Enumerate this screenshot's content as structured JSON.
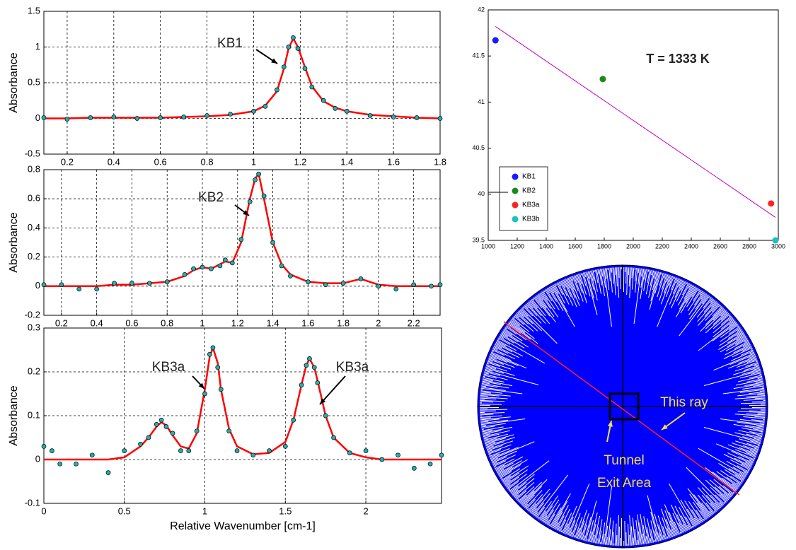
{
  "chart_data": [
    {
      "type": "line",
      "y_label": "Absorbance",
      "annotations": [
        "KB1"
      ],
      "xlim": [
        0.1,
        1.8
      ],
      "ylim": [
        -0.5,
        1.5
      ],
      "xticks": [
        0.2,
        0.4,
        0.6,
        0.8,
        1,
        1.2,
        1.4,
        1.6,
        1.8
      ],
      "yticks": [
        -0.5,
        0,
        0.5,
        1,
        1.5
      ],
      "grid": true,
      "x": [
        0.1,
        0.2,
        0.3,
        0.4,
        0.5,
        0.6,
        0.7,
        0.8,
        0.9,
        1.0,
        1.05,
        1.1,
        1.13,
        1.15,
        1.17,
        1.19,
        1.22,
        1.25,
        1.3,
        1.35,
        1.4,
        1.5,
        1.6,
        1.7,
        1.8
      ],
      "series": [
        {
          "color": "#ff0000",
          "style": "line",
          "values": [
            0,
            0,
            0.01,
            0.01,
            0.01,
            0.01,
            0.02,
            0.03,
            0.05,
            0.1,
            0.18,
            0.38,
            0.7,
            0.98,
            1.12,
            1.0,
            0.72,
            0.45,
            0.24,
            0.15,
            0.1,
            0.05,
            0.03,
            0.01,
            0
          ]
        },
        {
          "color": "#20b0b0",
          "style": "markers",
          "values": [
            0.01,
            -0.01,
            0.01,
            0.02,
            0,
            0.01,
            0.02,
            0.04,
            0.06,
            0.1,
            0.17,
            0.4,
            0.72,
            1.0,
            1.13,
            0.98,
            0.7,
            0.44,
            0.25,
            0.14,
            0.1,
            0.04,
            0.02,
            0.01,
            0
          ]
        }
      ]
    },
    {
      "type": "line",
      "y_label": "Absorbance",
      "annotations": [
        "KB2"
      ],
      "xlim": [
        0.1,
        2.35
      ],
      "ylim": [
        -0.2,
        0.8
      ],
      "xticks": [
        0.2,
        0.4,
        0.6,
        0.8,
        1,
        1.2,
        1.4,
        1.6,
        1.8,
        2,
        2.2
      ],
      "yticks": [
        -0.2,
        0,
        0.2,
        0.4,
        0.6,
        0.8
      ],
      "grid": true,
      "x": [
        0.1,
        0.2,
        0.3,
        0.4,
        0.5,
        0.6,
        0.7,
        0.8,
        0.9,
        0.95,
        1.0,
        1.05,
        1.1,
        1.13,
        1.17,
        1.22,
        1.27,
        1.3,
        1.32,
        1.35,
        1.4,
        1.45,
        1.5,
        1.6,
        1.7,
        1.8,
        1.9,
        2.0,
        2.1,
        2.2,
        2.3,
        2.35
      ],
      "series": [
        {
          "color": "#ff0000",
          "style": "line",
          "values": [
            0,
            0,
            0,
            0,
            0.01,
            0.01,
            0.02,
            0.03,
            0.07,
            0.11,
            0.13,
            0.12,
            0.15,
            0.17,
            0.16,
            0.3,
            0.6,
            0.74,
            0.77,
            0.6,
            0.3,
            0.15,
            0.08,
            0.03,
            0.02,
            0.02,
            0.05,
            0.01,
            0,
            0,
            0,
            0
          ]
        },
        {
          "color": "#20b0b0",
          "style": "markers",
          "values": [
            0.01,
            0.01,
            -0.02,
            -0.02,
            0.02,
            0.02,
            0.02,
            0.03,
            0.08,
            0.12,
            0.13,
            0.12,
            0.14,
            0.18,
            0.16,
            0.32,
            0.58,
            0.73,
            0.77,
            0.62,
            0.3,
            0.14,
            0.07,
            0.03,
            0.01,
            0.02,
            0.05,
            0,
            -0.02,
            0.01,
            0,
            0.01
          ]
        }
      ]
    },
    {
      "type": "line",
      "y_label": "Absorbance",
      "x_label": "Relative Wavenumber  [cm-1]",
      "annotations": [
        "KB3a",
        "KB3a"
      ],
      "xlim": [
        0,
        2.47
      ],
      "ylim": [
        -0.1,
        0.3
      ],
      "xticks": [
        0,
        0.5,
        1,
        1.5,
        2
      ],
      "yticks": [
        -0.1,
        0,
        0.1,
        0.2,
        0.3
      ],
      "grid": true,
      "x": [
        0,
        0.05,
        0.1,
        0.2,
        0.3,
        0.4,
        0.5,
        0.6,
        0.65,
        0.7,
        0.73,
        0.76,
        0.8,
        0.85,
        0.9,
        0.95,
        1.0,
        1.03,
        1.05,
        1.08,
        1.1,
        1.15,
        1.2,
        1.3,
        1.4,
        1.5,
        1.55,
        1.6,
        1.63,
        1.65,
        1.68,
        1.7,
        1.75,
        1.8,
        1.9,
        2.0,
        2.1,
        2.2,
        2.3,
        2.4,
        2.47
      ],
      "series": [
        {
          "color": "#ff0000",
          "style": "line",
          "values": [
            0,
            0,
            0,
            0,
            0,
            0,
            0.005,
            0.03,
            0.05,
            0.075,
            0.085,
            0.078,
            0.055,
            0.03,
            0.025,
            0.06,
            0.16,
            0.235,
            0.255,
            0.22,
            0.16,
            0.07,
            0.03,
            0.012,
            0.015,
            0.04,
            0.09,
            0.17,
            0.215,
            0.23,
            0.21,
            0.18,
            0.1,
            0.05,
            0.015,
            0.005,
            0,
            0,
            0,
            0,
            0
          ]
        },
        {
          "color": "#20b0b0",
          "style": "markers",
          "values": [
            0.03,
            0.02,
            -0.01,
            -0.01,
            0.01,
            -0.03,
            0.02,
            0.035,
            0.05,
            0.08,
            0.09,
            0.075,
            0.06,
            0.02,
            0.02,
            0.065,
            0.15,
            0.24,
            0.255,
            0.21,
            0.16,
            0.065,
            0.02,
            0.01,
            0.02,
            0.03,
            0.09,
            0.17,
            0.215,
            0.23,
            0.21,
            0.175,
            0.1,
            0.05,
            0.015,
            0.02,
            0,
            0.01,
            -0.02,
            -0.01,
            0.01
          ]
        }
      ]
    },
    {
      "type": "scatter",
      "annotations": [
        "T = 1333 K"
      ],
      "legend": "lower-left",
      "xlim": [
        1000,
        3000
      ],
      "ylim": [
        39.5,
        42
      ],
      "xticks": [
        1000,
        1200,
        1400,
        1600,
        1800,
        2000,
        2200,
        2400,
        2600,
        2800,
        3000
      ],
      "yticks": [
        39.5,
        40,
        40.5,
        41,
        41.5,
        42
      ],
      "series": [
        {
          "name": "KB1",
          "color": "#1a1aff",
          "x": [
            1050
          ],
          "values": [
            41.67
          ]
        },
        {
          "name": "KB2",
          "color": "#1a8a1a",
          "x": [
            1790
          ],
          "values": [
            41.25
          ]
        },
        {
          "name": "KB3a",
          "color": "#ff2020",
          "x": [
            2950
          ],
          "values": [
            39.9
          ]
        },
        {
          "name": "KB3b",
          "color": "#20c0c0",
          "x": [
            2980
          ],
          "values": [
            39.5
          ]
        }
      ],
      "fit": {
        "color": "#c000c0",
        "x": [
          1050,
          2980
        ],
        "values": [
          41.82,
          39.75
        ]
      }
    }
  ],
  "diagram": {
    "labels": [
      "This ray",
      "Tunnel",
      "Exit Area"
    ]
  }
}
